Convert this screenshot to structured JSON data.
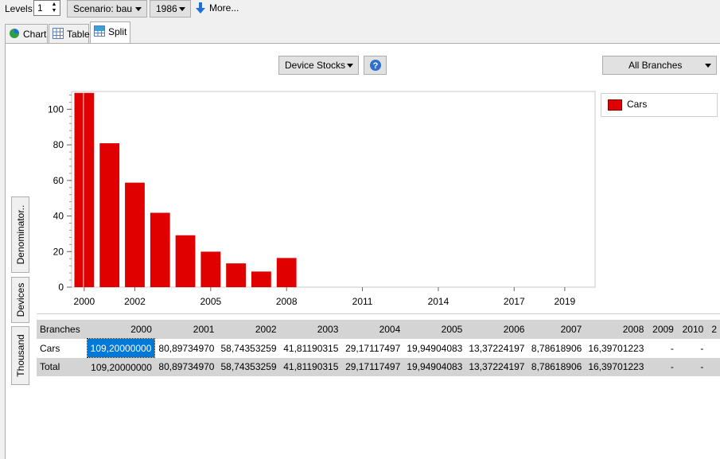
{
  "toolbar": {
    "levels_label": "Levels:",
    "levels_value": "1",
    "scenario_label": "Scenario: bau",
    "year_label": "1986",
    "more_label": "More..."
  },
  "tabs": [
    {
      "label": "Chart",
      "active": false
    },
    {
      "label": "Table",
      "active": false
    },
    {
      "label": "Split",
      "active": true
    }
  ],
  "chart_controls": {
    "variable_label": "Device Stocks",
    "branches_label": "All Branches"
  },
  "side_tabs": [
    "Denominator..",
    "Devices",
    "Thousand"
  ],
  "legend": [
    {
      "name": "Cars",
      "color": "#e00000"
    }
  ],
  "chart_data": {
    "type": "bar",
    "x": [
      2000,
      2001,
      2002,
      2003,
      2004,
      2005,
      2006,
      2007,
      2008
    ],
    "series": [
      {
        "name": "Cars",
        "values": [
          109.2,
          80.8973497,
          58.74353259,
          41.81190315,
          29.17117497,
          19.94904083,
          13.37224197,
          8.78618906,
          16.39701223
        ]
      }
    ],
    "xticks": [
      "2000",
      "2002",
      "2005",
      "2008",
      "2011",
      "2014",
      "2017",
      "2019"
    ],
    "yticks": [
      "0",
      "20",
      "40",
      "60",
      "80",
      "100"
    ],
    "ylim": [
      0,
      110
    ],
    "bar_color": "#e00000",
    "grid": false
  },
  "table": {
    "headers": [
      "Branches",
      "2000",
      "2001",
      "2002",
      "2003",
      "2004",
      "2005",
      "2006",
      "2007",
      "2008",
      "2009",
      "2010",
      "2"
    ],
    "rows": [
      [
        "Cars",
        "109,20000000",
        "80,89734970",
        "58,74353259",
        "41,81190315",
        "29,17117497",
        "19,94904083",
        "13,37224197",
        "8,78618906",
        "16,39701223",
        "-",
        "-",
        ""
      ],
      [
        "Total",
        "109,20000000",
        "80,89734970",
        "58,74353259",
        "41,81190315",
        "29,17117497",
        "19,94904083",
        "13,37224197",
        "8,78618906",
        "16,39701223",
        "-",
        "-",
        ""
      ]
    ]
  }
}
